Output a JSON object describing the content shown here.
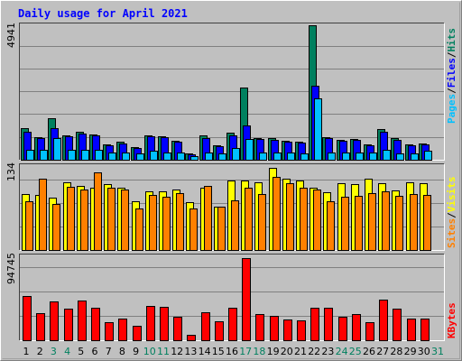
{
  "colors": {
    "background": "#c0c0c0",
    "title": "#0000ff",
    "hits": "#00805f",
    "files": "#0000ff",
    "pages": "#00c0ff",
    "visits": "#ffff00",
    "sites": "#ff8000",
    "kbytes": "#ff0000",
    "weekend_day": "#00805f",
    "weekday": "#000000"
  },
  "chart_data": [
    {
      "type": "bar",
      "title": "Daily usage for April 2021",
      "categories": [
        "1",
        "2",
        "3",
        "4",
        "5",
        "6",
        "7",
        "8",
        "9",
        "10",
        "11",
        "12",
        "13",
        "14",
        "15",
        "16",
        "17",
        "18",
        "19",
        "20",
        "21",
        "22",
        "23",
        "24",
        "25",
        "26",
        "27",
        "28",
        "29",
        "30",
        "31"
      ],
      "weekend_days": [
        "3",
        "4",
        "10",
        "11",
        "17",
        "18",
        "24",
        "25",
        "31"
      ],
      "ymax_label": "4941",
      "legend": [
        "Pages",
        "Files",
        "Hits"
      ],
      "series": [
        {
          "name": "Hits",
          "values": [
            1150,
            830,
            1530,
            900,
            1020,
            930,
            570,
            660,
            460,
            910,
            860,
            690,
            230,
            880,
            540,
            1010,
            2640,
            800,
            780,
            700,
            670,
            4941,
            840,
            730,
            760,
            570,
            1130,
            810,
            570,
            610,
            null
          ]
        },
        {
          "name": "Files",
          "values": [
            1030,
            780,
            1170,
            850,
            950,
            880,
            540,
            610,
            420,
            850,
            830,
            650,
            200,
            800,
            510,
            900,
            1260,
            760,
            740,
            650,
            620,
            2730,
            800,
            680,
            720,
            520,
            1030,
            740,
            520,
            560,
            null
          ]
        },
        {
          "name": "Pages",
          "values": [
            350,
            380,
            800,
            360,
            380,
            370,
            270,
            270,
            220,
            320,
            270,
            250,
            120,
            270,
            240,
            440,
            750,
            270,
            270,
            280,
            230,
            2270,
            260,
            260,
            270,
            250,
            380,
            230,
            240,
            320,
            null
          ]
        }
      ]
    },
    {
      "type": "bar",
      "categories": [
        "1",
        "2",
        "3",
        "4",
        "5",
        "6",
        "7",
        "8",
        "9",
        "10",
        "11",
        "12",
        "13",
        "14",
        "15",
        "16",
        "17",
        "18",
        "19",
        "20",
        "21",
        "22",
        "23",
        "24",
        "25",
        "26",
        "27",
        "28",
        "29",
        "30",
        "31"
      ],
      "ymax_label": "134",
      "legend": [
        "Sites",
        "Visits"
      ],
      "series": [
        {
          "name": "Visits",
          "values": [
            92,
            90,
            85,
            110,
            104,
            101,
            107,
            101,
            79,
            96,
            96,
            98,
            78,
            101,
            71,
            113,
            114,
            111,
            134,
            116,
            113,
            101,
            94,
            109,
            108,
            117,
            109,
            97,
            110,
            109,
            null
          ]
        },
        {
          "name": "Sites",
          "values": [
            80,
            116,
            75,
            103,
            99,
            126,
            101,
            99,
            68,
            90,
            87,
            93,
            68,
            104,
            71,
            81,
            101,
            92,
            120,
            109,
            101,
            98,
            79,
            87,
            88,
            93,
            96,
            88,
            92,
            90,
            null
          ]
        }
      ]
    },
    {
      "type": "bar",
      "categories": [
        "1",
        "2",
        "3",
        "4",
        "5",
        "6",
        "7",
        "8",
        "9",
        "10",
        "11",
        "12",
        "13",
        "14",
        "15",
        "16",
        "17",
        "18",
        "19",
        "20",
        "21",
        "22",
        "23",
        "24",
        "25",
        "26",
        "27",
        "28",
        "29",
        "30",
        "31"
      ],
      "ymax_label": "94745",
      "legend": [
        "KBytes"
      ],
      "series": [
        {
          "name": "KBytes",
          "values": [
            51000,
            31000,
            45000,
            36000,
            46000,
            37000,
            21000,
            25000,
            17000,
            40000,
            39000,
            27000,
            6300,
            32000,
            22000,
            37000,
            94745,
            30000,
            28000,
            24000,
            23000,
            37000,
            38000,
            27000,
            30000,
            21000,
            47000,
            36000,
            25000,
            25000,
            null
          ]
        }
      ]
    }
  ]
}
